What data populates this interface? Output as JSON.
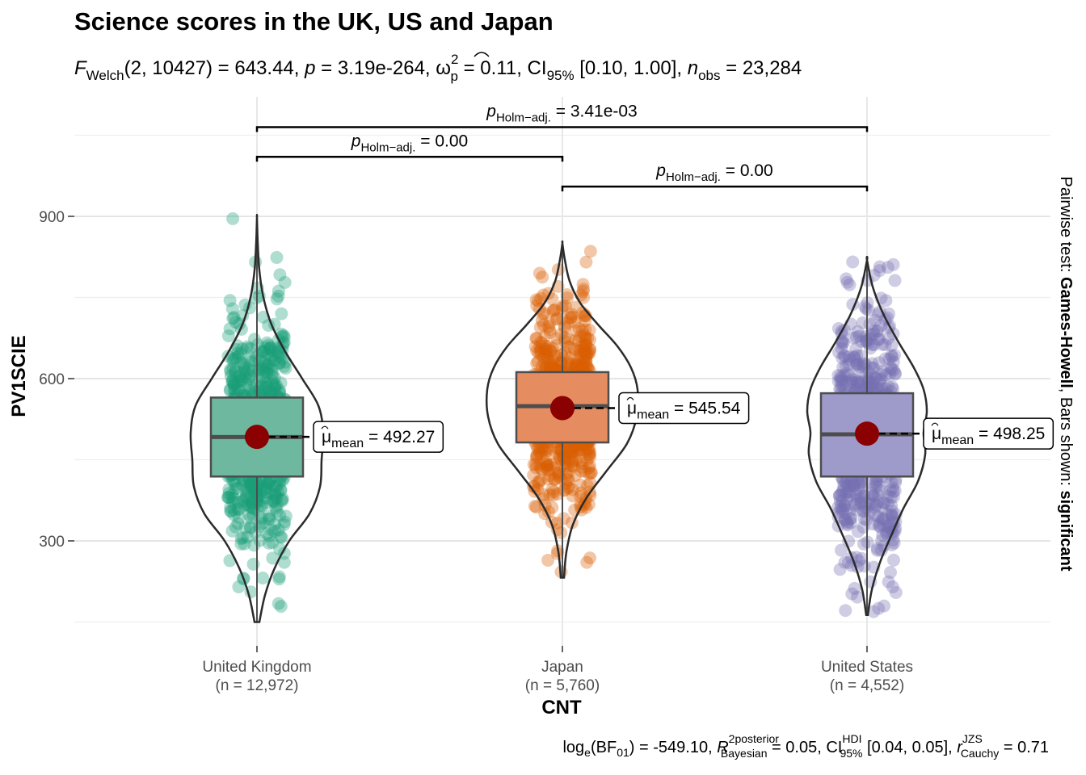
{
  "chart_data": {
    "type": "violin-box",
    "title": "Science scores in the UK, US and Japan",
    "subtitle": {
      "f_label": "F",
      "f_sub": "Welch",
      "df": "(2, 10427)",
      "stat_text": " = 643.44, ",
      "p_label": "p",
      "p_text": " = 3.19e-264, ",
      "omega": "ω",
      "omega_sup": "2",
      "omega_sub": "p",
      "omega_text": " = 0.11, CI",
      "ci_sub": "95%",
      "ci_text": " [0.10, 1.00], ",
      "n_label": "n",
      "n_sub": "obs",
      "n_text": " = 23,284"
    },
    "xlabel": "CNT",
    "ylabel": "PV1SCIE",
    "ylim": [
      125,
      1080
    ],
    "yticks": [
      300,
      600,
      900
    ],
    "y_minor_gridlines": [
      150,
      450,
      750,
      1050
    ],
    "grid": true,
    "categories": [
      "United Kingdom",
      "Japan",
      "United States"
    ],
    "category_counts": [
      "(n = 12,972)",
      "(n = 5,760)",
      "(n = 4,552)"
    ],
    "colors": [
      "#1B9E77",
      "#D95F02",
      "#7570B3"
    ],
    "box_fill_colors": [
      "#6DB89E",
      "#E58D60",
      "#9E9BCB"
    ],
    "mean_point_color": "#8B0000",
    "groups": [
      {
        "name": "United Kingdom",
        "n": 12972,
        "min": 150,
        "q1": 419,
        "median": 492,
        "q3": 565,
        "max": 897,
        "mean": 492.27,
        "violin_widths": [
          [
            150,
            3
          ],
          [
            200,
            10
          ],
          [
            250,
            22
          ],
          [
            300,
            40
          ],
          [
            350,
            65
          ],
          [
            400,
            78
          ],
          [
            450,
            80
          ],
          [
            500,
            82
          ],
          [
            550,
            76
          ],
          [
            600,
            56
          ],
          [
            650,
            35
          ],
          [
            700,
            18
          ],
          [
            750,
            8
          ],
          [
            800,
            3
          ],
          [
            850,
            1
          ],
          [
            897,
            0
          ]
        ],
        "mean_label": "492.27"
      },
      {
        "name": "Japan",
        "n": 5760,
        "min": 232,
        "q1": 482,
        "median": 549,
        "q3": 612,
        "max": 850,
        "mean": 545.54,
        "violin_widths": [
          [
            232,
            2
          ],
          [
            280,
            5
          ],
          [
            330,
            13
          ],
          [
            380,
            30
          ],
          [
            430,
            55
          ],
          [
            480,
            80
          ],
          [
            530,
            92
          ],
          [
            580,
            93
          ],
          [
            620,
            85
          ],
          [
            660,
            68
          ],
          [
            700,
            44
          ],
          [
            740,
            22
          ],
          [
            780,
            9
          ],
          [
            820,
            3
          ],
          [
            850,
            0
          ]
        ],
        "mean_label": "545.54"
      },
      {
        "name": "United States",
        "n": 4552,
        "min": 163,
        "q1": 419,
        "median": 497,
        "q3": 573,
        "max": 819,
        "mean": 498.25,
        "violin_widths": [
          [
            163,
            1
          ],
          [
            210,
            6
          ],
          [
            260,
            16
          ],
          [
            310,
            30
          ],
          [
            360,
            45
          ],
          [
            410,
            63
          ],
          [
            460,
            72
          ],
          [
            500,
            70
          ],
          [
            540,
            74
          ],
          [
            580,
            70
          ],
          [
            620,
            58
          ],
          [
            670,
            38
          ],
          [
            720,
            20
          ],
          [
            770,
            7
          ],
          [
            819,
            0
          ]
        ],
        "mean_label": "498.25"
      }
    ],
    "mean_annotation": {
      "mu": "μ",
      "sub": "mean",
      "eq": " = "
    },
    "pairwise": [
      {
        "from": 0,
        "to": 2,
        "y": 1065,
        "p_label": "p",
        "p_sub": "Holm−adj.",
        "value_text": " = 3.41e-03"
      },
      {
        "from": 0,
        "to": 1,
        "y": 1010,
        "p_label": "p",
        "p_sub": "Holm−adj.",
        "value_text": " = 0.00"
      },
      {
        "from": 1,
        "to": 2,
        "y": 955,
        "p_label": "p",
        "p_sub": "Holm−adj.",
        "value_text": " = 0.00"
      }
    ],
    "right_caption": {
      "prefix": "Pairwise test: ",
      "test": "Games-Howell",
      "middle": ", Bars shown: ",
      "shown": "significant"
    },
    "bayes_caption": {
      "log": "log",
      "log_sub": "e",
      "bf_open": "(BF",
      "bf_sub": "01",
      "bf_close": ")",
      "bf_text": " = -549.10, ",
      "r_label": "R",
      "r_sup": "2",
      "r_sup_text": "posterior",
      "r_sub": "Bayesian",
      "r_text": " = 0.05, CI",
      "ci_sup": "HDI",
      "ci_sub": "95%",
      "ci_text": " [0.04, 0.05], ",
      "rc_label": "r",
      "rc_sup": "JZS",
      "rc_sub": "Cauchy",
      "rc_text": " = 0.71"
    }
  }
}
